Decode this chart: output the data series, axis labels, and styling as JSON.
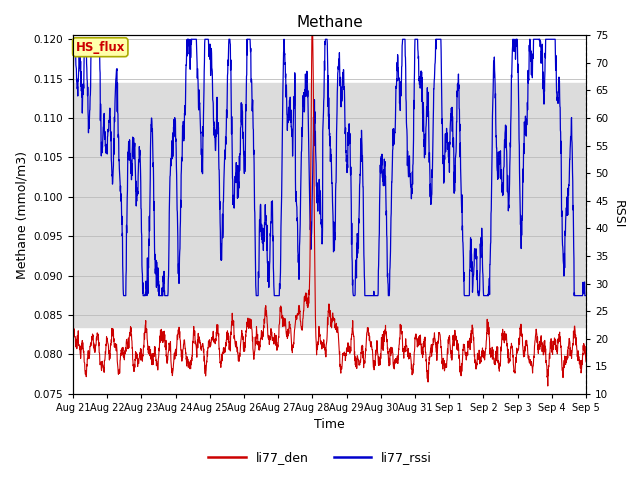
{
  "title": "Methane",
  "xlabel": "Time",
  "ylabel_left": "Methane (mmol/m3)",
  "ylabel_right": "RSSI",
  "ylim_left": [
    0.075,
    0.1205
  ],
  "ylim_right": [
    10,
    75
  ],
  "yticks_left": [
    0.075,
    0.08,
    0.085,
    0.09,
    0.095,
    0.1,
    0.105,
    0.11,
    0.115,
    0.12
  ],
  "yticks_right": [
    10,
    15,
    20,
    25,
    30,
    35,
    40,
    45,
    50,
    55,
    60,
    65,
    70,
    75
  ],
  "xtick_labels": [
    "Aug 21",
    "Aug 22",
    "Aug 23",
    "Aug 24",
    "Aug 25",
    "Aug 26",
    "Aug 27",
    "Aug 28",
    "Aug 29",
    "Aug 30",
    "Aug 31",
    "Sep 1",
    "Sep 2",
    "Sep 3",
    "Sep 4",
    "Sep 5"
  ],
  "legend_label1": "li77_den",
  "legend_label2": "li77_rssi",
  "color_den": "#cc0000",
  "color_rssi": "#0000cc",
  "annotation_text": "HS_flux",
  "annotation_bg": "#ffffaa",
  "annotation_border": "#aaaa00",
  "bg_band_color": "#dcdcdc",
  "grid_color": "#bbbbbb",
  "fig_bg": "#ffffff",
  "title_fontsize": 11,
  "axis_fontsize": 9,
  "tick_fontsize": 7.5
}
